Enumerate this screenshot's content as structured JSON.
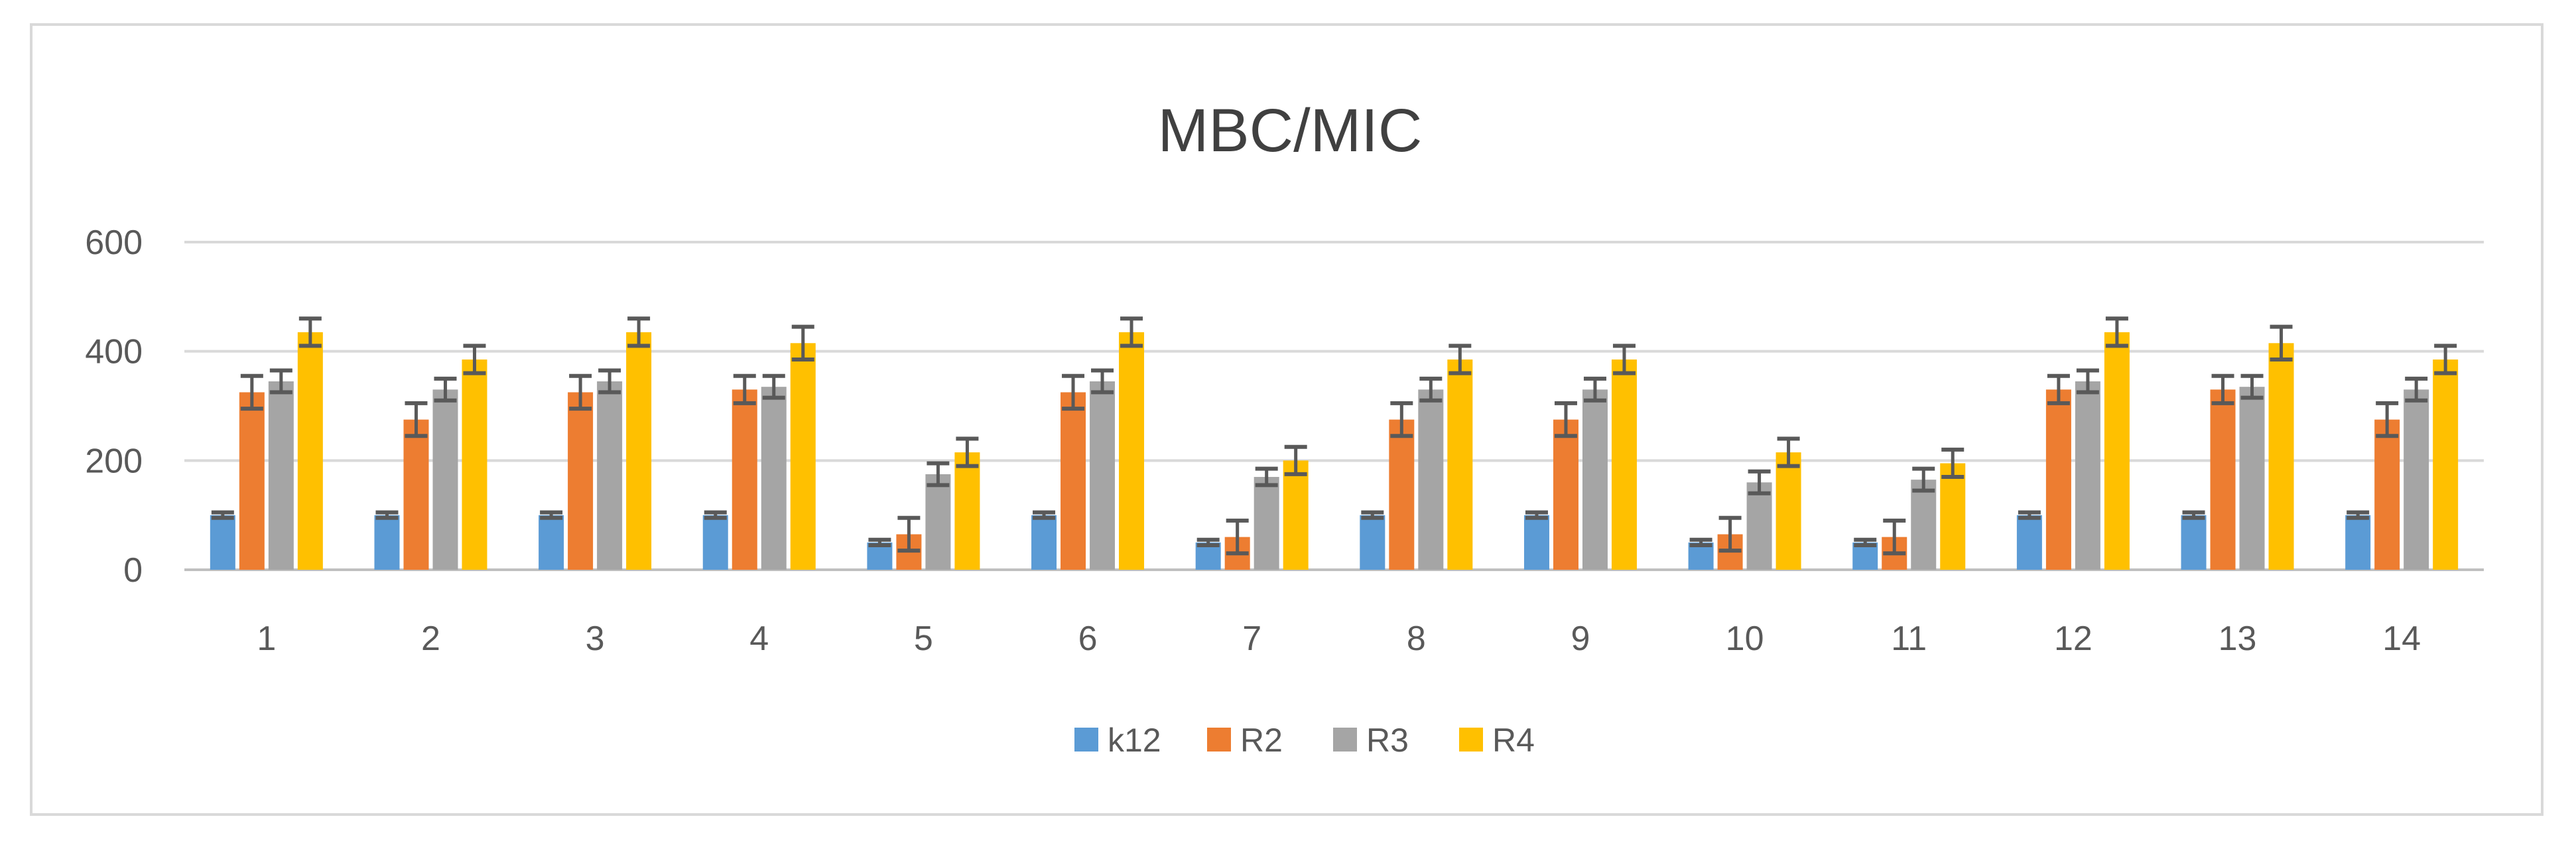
{
  "chart_data": {
    "type": "bar",
    "title": "MBC/MIC",
    "xlabel": "",
    "ylabel": "",
    "ylim": [
      0,
      600
    ],
    "yticks": [
      "0",
      "200",
      "400",
      "600"
    ],
    "grid": true,
    "legend_position": "bottom",
    "categories": [
      "1",
      "2",
      "3",
      "4",
      "5",
      "6",
      "7",
      "8",
      "9",
      "10",
      "11",
      "12",
      "13",
      "14"
    ],
    "series": [
      {
        "name": "k12",
        "color": "#5b9bd5",
        "values": [
          100,
          100,
          100,
          100,
          50,
          100,
          50,
          100,
          100,
          50,
          50,
          100,
          100,
          100
        ],
        "errors": [
          5,
          5,
          5,
          5,
          5,
          5,
          5,
          5,
          5,
          5,
          5,
          5,
          5,
          5
        ]
      },
      {
        "name": "R2",
        "color": "#ed7d31",
        "values": [
          325,
          275,
          325,
          330,
          65,
          325,
          60,
          275,
          275,
          65,
          60,
          330,
          330,
          275
        ],
        "errors": [
          30,
          30,
          30,
          25,
          30,
          30,
          30,
          30,
          30,
          30,
          30,
          25,
          25,
          30
        ]
      },
      {
        "name": "R3",
        "color": "#a5a5a5",
        "values": [
          345,
          330,
          345,
          335,
          175,
          345,
          170,
          330,
          330,
          160,
          165,
          345,
          335,
          330
        ],
        "errors": [
          20,
          20,
          20,
          20,
          20,
          20,
          15,
          20,
          20,
          20,
          20,
          20,
          20,
          20
        ]
      },
      {
        "name": "R4",
        "color": "#ffc000",
        "values": [
          435,
          385,
          435,
          415,
          215,
          435,
          200,
          385,
          385,
          215,
          195,
          435,
          415,
          385
        ],
        "errors": [
          25,
          25,
          25,
          30,
          25,
          25,
          25,
          25,
          25,
          25,
          25,
          25,
          30,
          25
        ]
      }
    ]
  }
}
